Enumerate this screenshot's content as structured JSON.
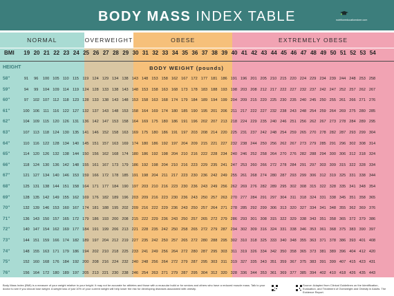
{
  "header": {
    "title_bold": "BODY MASS",
    "title_light": "INDEX TABLE",
    "logo_text": "nutritioneducationstore.com"
  },
  "categories": [
    {
      "label": "NORMAL",
      "color": "#a9dbd3",
      "head_color": "#a9dbd3"
    },
    {
      "label": "OVERWEIGHT",
      "color": "#d9c6a2",
      "head_color": "#ffffff"
    },
    {
      "label": "OBESE",
      "color": "#f6c07a",
      "head_color": "#f6c07a"
    },
    {
      "label": "EXTREMELY OBESE",
      "color": "#f1a3b3",
      "head_color": "#f1a3b3"
    }
  ],
  "table": {
    "bmi_label": "BMI",
    "height_label": "HEIGHT",
    "weight_label": "BODY WEIGHT (pounds)",
    "bmi": [
      19,
      20,
      21,
      22,
      23,
      24,
      25,
      26,
      27,
      28,
      29,
      30,
      31,
      32,
      33,
      34,
      35,
      36,
      37,
      38,
      39,
      40,
      41,
      42,
      43,
      44,
      45,
      46,
      47,
      48,
      49,
      50,
      51,
      52,
      53,
      54
    ],
    "heights": [
      "58\"",
      "59\"",
      "60\"",
      "61\"",
      "62\"",
      "63\"",
      "64\"",
      "65\"",
      "66\"",
      "67\"",
      "68\"",
      "69\"",
      "70\"",
      "71\"",
      "72\"",
      "73\"",
      "74\"",
      "75\"",
      "76\""
    ],
    "weights": [
      [
        91,
        96,
        100,
        105,
        110,
        115,
        119,
        124,
        129,
        134,
        138,
        143,
        148,
        153,
        158,
        162,
        167,
        172,
        177,
        181,
        186,
        191,
        196,
        201,
        205,
        210,
        215,
        220,
        224,
        229,
        234,
        239,
        244,
        248,
        253,
        258
      ],
      [
        94,
        99,
        104,
        109,
        114,
        119,
        124,
        128,
        133,
        138,
        143,
        148,
        153,
        158,
        163,
        168,
        173,
        178,
        183,
        188,
        193,
        198,
        203,
        208,
        212,
        217,
        222,
        227,
        232,
        237,
        242,
        247,
        252,
        257,
        262,
        267
      ],
      [
        97,
        102,
        107,
        112,
        118,
        123,
        128,
        133,
        138,
        143,
        148,
        153,
        158,
        163,
        168,
        174,
        179,
        184,
        189,
        194,
        199,
        204,
        209,
        215,
        220,
        225,
        230,
        235,
        240,
        245,
        250,
        255,
        261,
        266,
        271,
        276
      ],
      [
        100,
        106,
        111,
        116,
        122,
        127,
        132,
        137,
        143,
        148,
        153,
        158,
        164,
        169,
        174,
        180,
        185,
        190,
        195,
        201,
        206,
        211,
        217,
        222,
        227,
        232,
        238,
        243,
        248,
        254,
        259,
        264,
        269,
        275,
        280,
        285
      ],
      [
        104,
        109,
        115,
        120,
        126,
        131,
        136,
        142,
        147,
        153,
        158,
        164,
        169,
        175,
        180,
        186,
        191,
        196,
        202,
        207,
        213,
        218,
        224,
        229,
        235,
        240,
        246,
        251,
        256,
        262,
        267,
        273,
        278,
        284,
        289,
        295
      ],
      [
        107,
        113,
        118,
        124,
        130,
        135,
        141,
        146,
        152,
        158,
        163,
        169,
        175,
        180,
        186,
        191,
        197,
        203,
        208,
        214,
        220,
        225,
        231,
        237,
        242,
        248,
        254,
        259,
        265,
        270,
        278,
        282,
        287,
        293,
        299,
        304
      ],
      [
        110,
        116,
        122,
        128,
        134,
        140,
        145,
        151,
        157,
        163,
        169,
        174,
        180,
        186,
        192,
        197,
        204,
        209,
        215,
        221,
        227,
        232,
        238,
        244,
        250,
        256,
        262,
        267,
        273,
        279,
        285,
        291,
        296,
        302,
        308,
        314
      ],
      [
        114,
        120,
        126,
        132,
        138,
        144,
        150,
        156,
        162,
        168,
        174,
        180,
        186,
        192,
        198,
        204,
        210,
        216,
        222,
        228,
        234,
        240,
        246,
        252,
        258,
        264,
        270,
        276,
        282,
        288,
        294,
        300,
        306,
        312,
        318,
        324
      ],
      [
        118,
        124,
        130,
        136,
        142,
        148,
        155,
        161,
        167,
        173,
        179,
        186,
        192,
        198,
        204,
        210,
        216,
        223,
        229,
        235,
        241,
        247,
        253,
        260,
        266,
        272,
        278,
        284,
        291,
        297,
        303,
        309,
        315,
        322,
        328,
        334
      ],
      [
        121,
        127,
        134,
        140,
        146,
        153,
        159,
        166,
        172,
        178,
        185,
        191,
        198,
        204,
        211,
        217,
        223,
        230,
        236,
        242,
        249,
        255,
        261,
        268,
        274,
        280,
        287,
        293,
        299,
        306,
        312,
        319,
        325,
        331,
        338,
        344
      ],
      [
        125,
        131,
        138,
        144,
        151,
        158,
        164,
        171,
        177,
        184,
        190,
        197,
        203,
        210,
        216,
        223,
        230,
        236,
        243,
        249,
        256,
        262,
        269,
        276,
        282,
        289,
        295,
        302,
        308,
        315,
        322,
        328,
        335,
        341,
        348,
        354
      ],
      [
        128,
        135,
        142,
        149,
        155,
        162,
        169,
        176,
        182,
        189,
        196,
        203,
        209,
        216,
        223,
        230,
        236,
        243,
        250,
        257,
        263,
        270,
        277,
        284,
        291,
        297,
        304,
        311,
        318,
        324,
        331,
        338,
        345,
        351,
        358,
        365
      ],
      [
        132,
        139,
        146,
        153,
        160,
        167,
        174,
        181,
        188,
        195,
        202,
        209,
        216,
        222,
        229,
        236,
        243,
        250,
        257,
        264,
        271,
        278,
        285,
        292,
        299,
        306,
        313,
        320,
        327,
        334,
        341,
        348,
        355,
        362,
        369,
        376
      ],
      [
        136,
        143,
        150,
        157,
        165,
        172,
        179,
        186,
        193,
        200,
        208,
        215,
        222,
        229,
        236,
        243,
        250,
        257,
        265,
        272,
        279,
        286,
        293,
        301,
        308,
        315,
        322,
        329,
        338,
        343,
        351,
        358,
        365,
        372,
        379,
        386
      ],
      [
        140,
        147,
        154,
        162,
        169,
        177,
        184,
        191,
        199,
        206,
        213,
        221,
        228,
        235,
        242,
        250,
        258,
        265,
        272,
        279,
        287,
        294,
        302,
        309,
        316,
        324,
        331,
        338,
        346,
        353,
        361,
        368,
        375,
        383,
        390,
        397
      ],
      [
        144,
        151,
        159,
        166,
        174,
        182,
        189,
        197,
        204,
        212,
        219,
        227,
        235,
        242,
        250,
        257,
        265,
        272,
        280,
        288,
        295,
        302,
        310,
        318,
        325,
        333,
        340,
        348,
        355,
        363,
        371,
        378,
        386,
        393,
        401,
        408
      ],
      [
        148,
        155,
        163,
        171,
        179,
        186,
        194,
        202,
        210,
        218,
        225,
        233,
        241,
        249,
        256,
        264,
        272,
        280,
        287,
        295,
        303,
        311,
        319,
        326,
        334,
        342,
        350,
        358,
        365,
        373,
        381,
        389,
        396,
        404,
        412,
        420
      ],
      [
        152,
        160,
        168,
        176,
        184,
        192,
        200,
        208,
        216,
        224,
        232,
        240,
        248,
        256,
        264,
        272,
        279,
        287,
        295,
        303,
        311,
        319,
        327,
        335,
        343,
        351,
        359,
        367,
        375,
        383,
        391,
        399,
        407,
        415,
        423,
        431
      ],
      [
        156,
        164,
        172,
        180,
        189,
        197,
        205,
        213,
        221,
        230,
        238,
        246,
        254,
        263,
        271,
        279,
        287,
        295,
        304,
        312,
        320,
        328,
        336,
        344,
        353,
        361,
        369,
        377,
        385,
        394,
        402,
        410,
        418,
        426,
        435,
        443
      ]
    ]
  },
  "footer": {
    "left_text": "Body Mass Index (BMI) is a measure of your weight relative to your height. It may not be accurate for athletes and those with a muscular build or for seniors and others who have a reduced muscle mass. Talk to your doctor to see if you should lose weight. A weight loss of just 10% of your current weight will help lower the risk for developing diseases associated with obesity.",
    "right_text": "Source: Adapted from Clinical Guidelines on the Identification, Evaluation, and Treatment of Overweight and Obesity in Adults: The Evidence Report."
  }
}
